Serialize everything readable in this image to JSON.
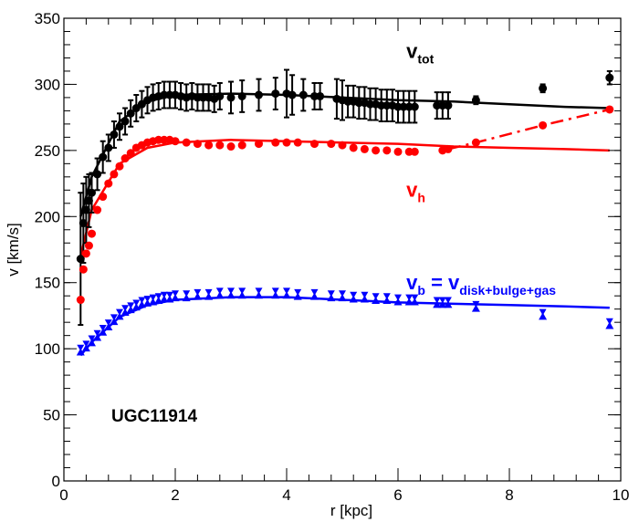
{
  "chart_data": {
    "type": "scatter",
    "title": "",
    "xlabel": "r [kpc]",
    "ylabel": "v [km/s]",
    "xlim": [
      0,
      10
    ],
    "ylim": [
      0,
      350
    ],
    "xticks": [
      0,
      2,
      4,
      6,
      8,
      10
    ],
    "yticks": [
      0,
      50,
      100,
      150,
      200,
      250,
      300,
      350
    ],
    "grid": false,
    "galaxy_label": "UGC11914",
    "annotations": {
      "vtot": {
        "main": "v",
        "sub": "tot"
      },
      "vh": {
        "main": "v",
        "sub": "h"
      },
      "vb": {
        "main": "v",
        "sub": "b",
        "eq": " = v",
        "eq_sub": "disk+bulge+gas"
      }
    },
    "series": [
      {
        "key": "vtot",
        "color": "#000000",
        "marker": "circle",
        "points": [
          [
            0.3,
            168,
            50
          ],
          [
            0.35,
            195,
            30
          ],
          [
            0.4,
            205,
            25
          ],
          [
            0.45,
            212,
            20
          ],
          [
            0.5,
            218,
            15
          ],
          [
            0.6,
            232,
            12
          ],
          [
            0.7,
            245,
            12
          ],
          [
            0.8,
            252,
            10
          ],
          [
            0.9,
            262,
            10
          ],
          [
            1.0,
            268,
            10
          ],
          [
            1.1,
            272,
            10
          ],
          [
            1.2,
            278,
            10
          ],
          [
            1.3,
            282,
            10
          ],
          [
            1.4,
            285,
            10
          ],
          [
            1.5,
            288,
            10
          ],
          [
            1.6,
            290,
            10
          ],
          [
            1.7,
            291,
            10
          ],
          [
            1.8,
            292,
            10
          ],
          [
            1.9,
            292,
            10
          ],
          [
            2.0,
            292,
            10
          ],
          [
            2.1,
            291,
            10
          ],
          [
            2.2,
            290,
            10
          ],
          [
            2.3,
            291,
            10
          ],
          [
            2.4,
            290,
            10
          ],
          [
            2.5,
            290,
            10
          ],
          [
            2.6,
            290,
            10
          ],
          [
            2.7,
            289,
            10
          ],
          [
            2.8,
            291,
            10
          ],
          [
            3.0,
            290,
            12
          ],
          [
            3.2,
            291,
            12
          ],
          [
            3.5,
            292,
            12
          ],
          [
            3.8,
            293,
            12
          ],
          [
            4.0,
            293,
            18
          ],
          [
            4.1,
            292,
            15
          ],
          [
            4.3,
            292,
            12
          ],
          [
            4.5,
            291,
            10
          ],
          [
            4.6,
            291,
            10
          ],
          [
            4.9,
            289,
            15
          ],
          [
            5.0,
            288,
            15
          ],
          [
            5.1,
            287,
            12
          ],
          [
            5.2,
            287,
            12
          ],
          [
            5.3,
            286,
            12
          ],
          [
            5.4,
            286,
            12
          ],
          [
            5.5,
            285,
            12
          ],
          [
            5.6,
            285,
            12
          ],
          [
            5.7,
            284,
            12
          ],
          [
            5.8,
            284,
            12
          ],
          [
            5.9,
            284,
            12
          ],
          [
            6.0,
            283,
            12
          ],
          [
            6.1,
            283,
            12
          ],
          [
            6.2,
            283,
            12
          ],
          [
            6.3,
            283,
            12
          ],
          [
            6.7,
            284,
            10
          ],
          [
            6.8,
            284,
            10
          ],
          [
            6.9,
            284,
            10
          ],
          [
            7.4,
            288,
            3
          ],
          [
            8.6,
            297,
            3
          ],
          [
            9.8,
            305,
            5
          ]
        ],
        "curve_x": [
          0.3,
          0.5,
          1.0,
          1.5,
          2.0,
          3.0,
          4.0,
          5.0,
          6.0,
          7.0,
          8.0,
          9.0,
          9.8
        ],
        "curve_y": [
          200,
          230,
          272,
          287,
          292,
          293,
          292,
          290,
          288,
          287,
          285,
          283,
          282
        ]
      },
      {
        "key": "vh",
        "color": "#ff0000",
        "marker": "circle",
        "points": [
          [
            0.3,
            137
          ],
          [
            0.35,
            160
          ],
          [
            0.4,
            172
          ],
          [
            0.45,
            178
          ],
          [
            0.5,
            187
          ],
          [
            0.6,
            205
          ],
          [
            0.7,
            215
          ],
          [
            0.8,
            225
          ],
          [
            0.9,
            232
          ],
          [
            1.0,
            238
          ],
          [
            1.1,
            244
          ],
          [
            1.2,
            248
          ],
          [
            1.3,
            252
          ],
          [
            1.4,
            254
          ],
          [
            1.5,
            256
          ],
          [
            1.6,
            257
          ],
          [
            1.7,
            258
          ],
          [
            1.8,
            258
          ],
          [
            1.9,
            258
          ],
          [
            2.0,
            257
          ],
          [
            2.2,
            256
          ],
          [
            2.4,
            255
          ],
          [
            2.6,
            254
          ],
          [
            2.8,
            254
          ],
          [
            3.0,
            253
          ],
          [
            3.2,
            254
          ],
          [
            3.5,
            255
          ],
          [
            3.8,
            256
          ],
          [
            4.0,
            256
          ],
          [
            4.2,
            256
          ],
          [
            4.5,
            255
          ],
          [
            4.8,
            255
          ],
          [
            5.0,
            254
          ],
          [
            5.2,
            252
          ],
          [
            5.4,
            251
          ],
          [
            5.6,
            250
          ],
          [
            5.8,
            250
          ],
          [
            6.0,
            249
          ],
          [
            6.2,
            249
          ],
          [
            6.3,
            249
          ],
          [
            6.8,
            250
          ],
          [
            6.9,
            251
          ],
          [
            7.4,
            256
          ],
          [
            8.6,
            269
          ],
          [
            9.8,
            281
          ]
        ],
        "curve_x": [
          0.3,
          0.5,
          1.0,
          1.5,
          2.0,
          3.0,
          4.0,
          5.0,
          6.0,
          7.0,
          8.0,
          9.0,
          9.8
        ],
        "curve_y": [
          170,
          205,
          240,
          252,
          256,
          258,
          257,
          256,
          255,
          253,
          252,
          251,
          250
        ],
        "dashed_x": [
          6.9,
          7.4,
          8.6,
          9.8
        ],
        "dashed_y": [
          251,
          256,
          269,
          281
        ]
      },
      {
        "key": "vb",
        "color": "#0000ff",
        "marker": "triangle",
        "points": [
          [
            0.3,
            97
          ],
          [
            0.4,
            100
          ],
          [
            0.5,
            104
          ],
          [
            0.6,
            108
          ],
          [
            0.7,
            112
          ],
          [
            0.8,
            116
          ],
          [
            0.9,
            120
          ],
          [
            1.0,
            124
          ],
          [
            1.1,
            127
          ],
          [
            1.2,
            129
          ],
          [
            1.3,
            131
          ],
          [
            1.4,
            133
          ],
          [
            1.5,
            134
          ],
          [
            1.6,
            135
          ],
          [
            1.7,
            136
          ],
          [
            1.8,
            137
          ],
          [
            1.9,
            137
          ],
          [
            2.0,
            138
          ],
          [
            2.2,
            138
          ],
          [
            2.4,
            139
          ],
          [
            2.6,
            139
          ],
          [
            2.8,
            140
          ],
          [
            3.0,
            140
          ],
          [
            3.2,
            140
          ],
          [
            3.5,
            140
          ],
          [
            3.8,
            140
          ],
          [
            4.0,
            140
          ],
          [
            4.2,
            139
          ],
          [
            4.5,
            139
          ],
          [
            4.8,
            138
          ],
          [
            5.0,
            138
          ],
          [
            5.2,
            137
          ],
          [
            5.4,
            137
          ],
          [
            5.6,
            136
          ],
          [
            5.8,
            136
          ],
          [
            6.0,
            135
          ],
          [
            6.2,
            135
          ],
          [
            6.3,
            135
          ],
          [
            6.7,
            133
          ],
          [
            6.8,
            133
          ],
          [
            6.9,
            133
          ],
          [
            7.4,
            130
          ],
          [
            8.6,
            124
          ],
          [
            9.8,
            117
          ]
        ],
        "curve_x": [
          0.3,
          0.5,
          1.0,
          1.5,
          2.0,
          3.0,
          4.0,
          5.0,
          6.0,
          7.0,
          8.0,
          9.0,
          9.8
        ],
        "curve_y": [
          95,
          105,
          124,
          133,
          137,
          139,
          139,
          137,
          135,
          134,
          133,
          132,
          131
        ]
      }
    ]
  }
}
